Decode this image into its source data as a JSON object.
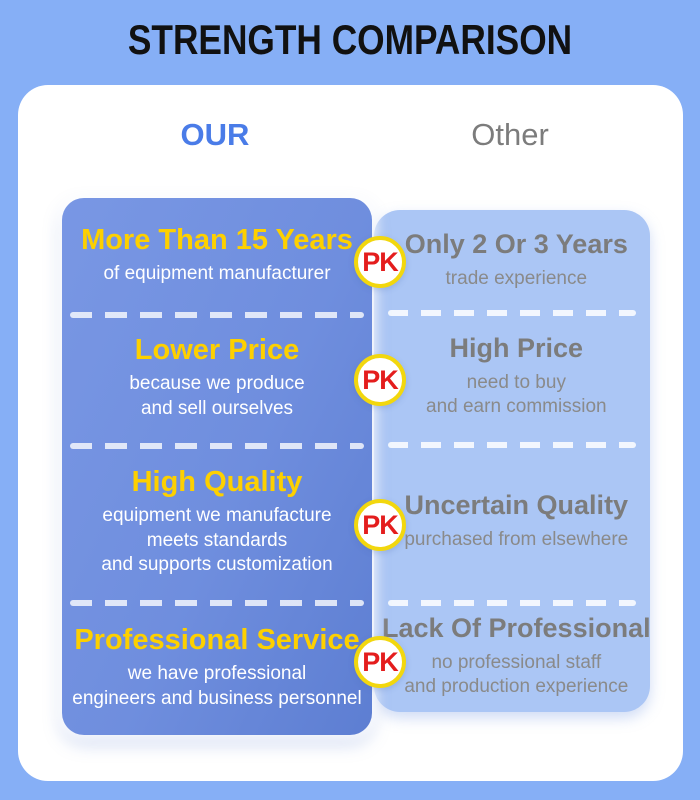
{
  "title": "STRENGTH COMPARISON",
  "columns": {
    "our": "OUR",
    "other": "Other"
  },
  "badge": {
    "label": "PK"
  },
  "colors": {
    "background": "#86aff6",
    "card": "#ffffff",
    "left_panel": "#6f8ede",
    "right_panel": "#abc6f5",
    "accent_yellow": "#fdd000",
    "badge_red": "#e41d1d",
    "badge_border": "#f2d70e",
    "our_header": "#4a7ce8",
    "other_header": "#7c7c7c",
    "other_text": "#8a8a8a",
    "title_color": "#111111"
  },
  "rows": [
    {
      "our": {
        "title": "More Than 15 Years",
        "lines": [
          "of equipment manufacturer"
        ]
      },
      "other": {
        "title": "Only 2 Or 3 Years",
        "lines": [
          "trade experience"
        ]
      }
    },
    {
      "our": {
        "title": "Lower Price",
        "lines": [
          "because we produce",
          "and sell ourselves"
        ]
      },
      "other": {
        "title": "High Price",
        "lines": [
          "need to buy",
          "and earn commission"
        ]
      }
    },
    {
      "our": {
        "title": "High Quality",
        "lines": [
          "equipment we manufacture",
          "meets standards",
          "and supports customization"
        ]
      },
      "other": {
        "title": "Uncertain Quality",
        "lines": [
          "purchased from elsewhere"
        ]
      }
    },
    {
      "our": {
        "title": "Professional Service",
        "lines": [
          "we have professional",
          "engineers and business personnel"
        ]
      },
      "other": {
        "title": "Lack Of Professional",
        "lines": [
          "no professional staff",
          "and production experience"
        ]
      }
    }
  ]
}
